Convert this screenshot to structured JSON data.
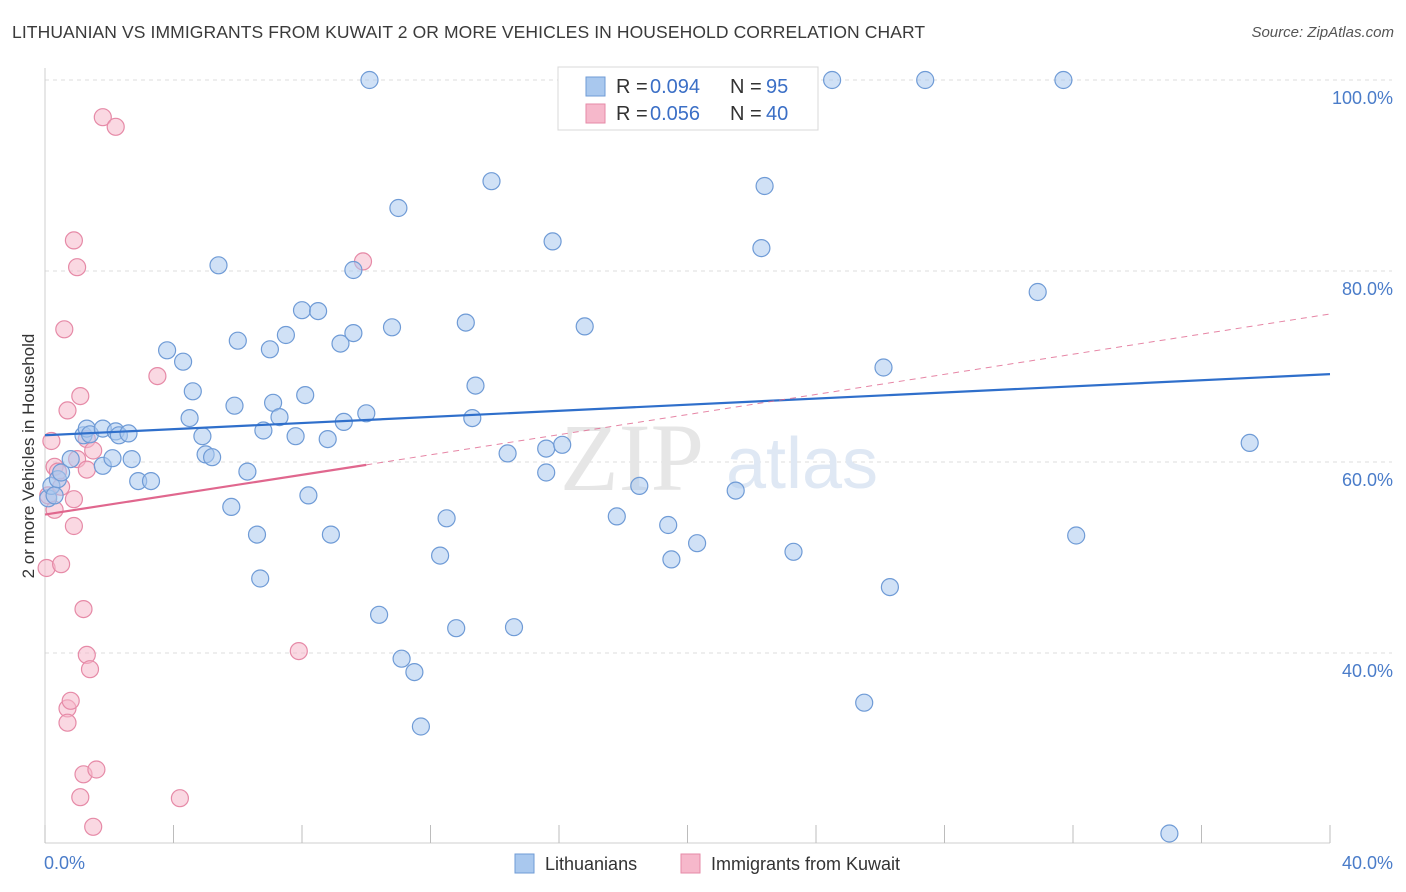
{
  "title": "LITHUANIAN VS IMMIGRANTS FROM KUWAIT 2 OR MORE VEHICLES IN HOUSEHOLD CORRELATION CHART",
  "source": "Source: ZipAtlas.com",
  "legend_top": {
    "r_label": "R =",
    "n_label": "N =",
    "series": [
      {
        "r": "0.094",
        "n": "95"
      },
      {
        "r": "0.056",
        "n": "40"
      }
    ]
  },
  "watermark": {
    "zip": "ZIP",
    "atlas": "atlas"
  },
  "colors": {
    "blue_fill": "#a9c8ee",
    "blue_stroke": "#6f9bd6",
    "blue_line": "#2f6fcb",
    "pink_fill": "#f6b8cb",
    "pink_stroke": "#e68aa7",
    "pink_line": "#e0678e",
    "grid": "#dcdcdc",
    "tick": "#4a7cc9"
  },
  "chart_data": {
    "type": "scatter",
    "title": "LITHUANIAN VS IMMIGRANTS FROM KUWAIT 2 OR MORE VEHICLES IN HOUSEHOLD CORRELATION CHART",
    "xlabel": "",
    "ylabel": "2 or more Vehicles in Household",
    "xlim": [
      0,
      40
    ],
    "ylim": [
      18,
      102
    ],
    "x_tick_labels": [
      "0.0%",
      "40.0%"
    ],
    "y_ticks": [
      40,
      60,
      80,
      100
    ],
    "y_tick_labels": [
      "40.0%",
      "60.0%",
      "80.0%",
      "100.0%"
    ],
    "grid": true,
    "legend_position": "top-center",
    "series": [
      {
        "name": "Lithuanians",
        "color": "#a9c8ee",
        "trend": {
          "x": [
            0,
            40
          ],
          "y": [
            62.8,
            69.2
          ],
          "style": "solid"
        },
        "points": [
          [
            0.1,
            56.2
          ],
          [
            0.2,
            57.5
          ],
          [
            0.3,
            56.5
          ],
          [
            0.4,
            58.2
          ],
          [
            0.5,
            58.9
          ],
          [
            0.8,
            60.3
          ],
          [
            1.2,
            62.8
          ],
          [
            1.3,
            63.5
          ],
          [
            1.4,
            62.9
          ],
          [
            1.8,
            59.6
          ],
          [
            1.8,
            63.5
          ],
          [
            2.1,
            60.4
          ],
          [
            2.2,
            63.2
          ],
          [
            2.3,
            62.8
          ],
          [
            2.6,
            63.0
          ],
          [
            2.7,
            60.3
          ],
          [
            2.9,
            58.0
          ],
          [
            3.3,
            58.0
          ],
          [
            3.8,
            71.7
          ],
          [
            4.3,
            70.5
          ],
          [
            4.5,
            64.6
          ],
          [
            4.6,
            67.4
          ],
          [
            4.9,
            62.7
          ],
          [
            5.0,
            60.8
          ],
          [
            5.2,
            60.5
          ],
          [
            5.4,
            80.6
          ],
          [
            5.8,
            55.3
          ],
          [
            5.9,
            65.9
          ],
          [
            6.0,
            72.7
          ],
          [
            6.3,
            59.0
          ],
          [
            6.6,
            52.4
          ],
          [
            6.7,
            47.8
          ],
          [
            6.8,
            63.3
          ],
          [
            7.0,
            71.8
          ],
          [
            7.1,
            66.2
          ],
          [
            7.3,
            64.7
          ],
          [
            7.5,
            73.3
          ],
          [
            7.8,
            62.7
          ],
          [
            8.0,
            75.9
          ],
          [
            8.1,
            67.0
          ],
          [
            8.2,
            56.5
          ],
          [
            8.5,
            75.8
          ],
          [
            8.8,
            62.4
          ],
          [
            8.9,
            52.4
          ],
          [
            9.2,
            72.4
          ],
          [
            9.3,
            64.2
          ],
          [
            9.6,
            80.1
          ],
          [
            9.6,
            73.5
          ],
          [
            10.0,
            65.1
          ],
          [
            10.1,
            100.0
          ],
          [
            10.4,
            44.0
          ],
          [
            10.8,
            74.1
          ],
          [
            11.0,
            86.6
          ],
          [
            11.1,
            39.4
          ],
          [
            11.5,
            38.0
          ],
          [
            11.7,
            32.3
          ],
          [
            12.3,
            50.2
          ],
          [
            12.5,
            54.1
          ],
          [
            12.8,
            42.6
          ],
          [
            13.1,
            74.6
          ],
          [
            13.3,
            64.6
          ],
          [
            13.4,
            68.0
          ],
          [
            13.9,
            89.4
          ],
          [
            14.4,
            60.9
          ],
          [
            14.6,
            42.7
          ],
          [
            15.6,
            58.9
          ],
          [
            15.6,
            61.4
          ],
          [
            15.8,
            83.1
          ],
          [
            16.1,
            61.8
          ],
          [
            16.8,
            74.2
          ],
          [
            17.8,
            54.3
          ],
          [
            18.2,
            100.0
          ],
          [
            18.5,
            57.5
          ],
          [
            19.4,
            53.4
          ],
          [
            19.5,
            49.8
          ],
          [
            20.3,
            51.5
          ],
          [
            21.5,
            57.0
          ],
          [
            22.3,
            82.4
          ],
          [
            22.4,
            88.9
          ],
          [
            23.3,
            50.6
          ],
          [
            24.5,
            100.0
          ],
          [
            25.5,
            34.8
          ],
          [
            26.1,
            69.9
          ],
          [
            26.3,
            46.9
          ],
          [
            27.4,
            100.0
          ],
          [
            30.9,
            77.8
          ],
          [
            31.7,
            100.0
          ],
          [
            32.1,
            52.3
          ],
          [
            35.0,
            21.1
          ],
          [
            37.5,
            62.0
          ]
        ]
      },
      {
        "name": "Immigrants from Kuwait",
        "color": "#f6b8cb",
        "trend": {
          "x": [
            0,
            10
          ],
          "y": [
            54.5,
            59.7
          ],
          "style": "solid",
          "extended": {
            "x": [
              10,
              40
            ],
            "y": [
              59.7,
              75.5
            ],
            "style": "dashed"
          }
        },
        "points": [
          [
            0.05,
            48.9
          ],
          [
            0.1,
            56.5
          ],
          [
            0.2,
            62.2
          ],
          [
            0.3,
            59.5
          ],
          [
            0.3,
            55.0
          ],
          [
            0.4,
            59.0
          ],
          [
            0.5,
            57.4
          ],
          [
            0.5,
            49.3
          ],
          [
            0.6,
            73.9
          ],
          [
            0.7,
            65.4
          ],
          [
            0.7,
            34.2
          ],
          [
            0.7,
            32.7
          ],
          [
            0.8,
            35.0
          ],
          [
            0.9,
            83.2
          ],
          [
            0.9,
            56.1
          ],
          [
            0.9,
            53.3
          ],
          [
            1.0,
            80.4
          ],
          [
            1.0,
            60.3
          ],
          [
            1.1,
            24.9
          ],
          [
            1.1,
            66.9
          ],
          [
            1.2,
            44.6
          ],
          [
            1.2,
            27.3
          ],
          [
            1.3,
            62.4
          ],
          [
            1.3,
            59.2
          ],
          [
            1.3,
            39.8
          ],
          [
            1.4,
            38.3
          ],
          [
            1.5,
            61.2
          ],
          [
            1.5,
            21.8
          ],
          [
            1.6,
            27.8
          ],
          [
            1.8,
            96.1
          ],
          [
            2.2,
            95.1
          ],
          [
            3.5,
            69.0
          ],
          [
            4.2,
            24.8
          ],
          [
            7.9,
            40.2
          ],
          [
            9.9,
            81.0
          ]
        ]
      }
    ]
  }
}
